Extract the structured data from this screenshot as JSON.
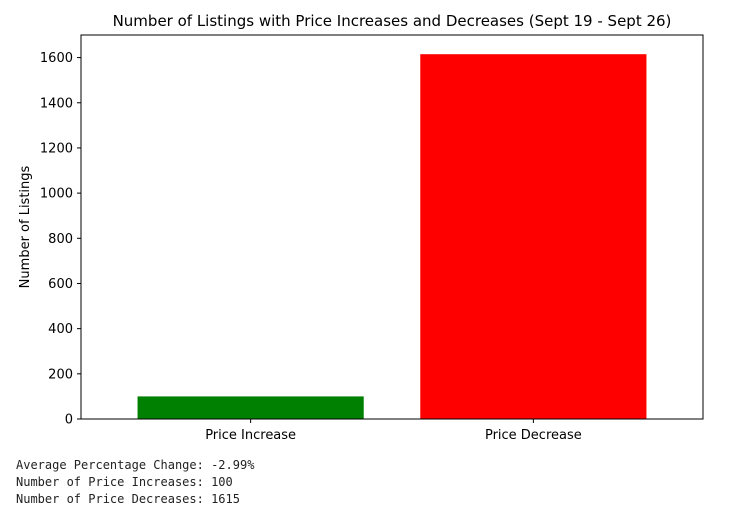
{
  "chart_data": {
    "type": "bar",
    "title": "Number of Listings with Price Increases and Decreases (Sept 19 - Sept 26)",
    "xlabel": "",
    "ylabel": "Number of Listings",
    "categories": [
      "Price Increase",
      "Price Decrease"
    ],
    "values": [
      100,
      1615
    ],
    "colors": [
      "#008000",
      "#ff0000"
    ],
    "ylim": [
      0,
      1700
    ],
    "yticks": [
      0,
      200,
      400,
      600,
      800,
      1000,
      1200,
      1400,
      1600
    ],
    "grid": false
  },
  "stats": {
    "avg_change": "Average Percentage Change: -2.99%",
    "increases": "Number of Price Increases: 100",
    "decreases": "Number of Price Decreases: 1615"
  }
}
